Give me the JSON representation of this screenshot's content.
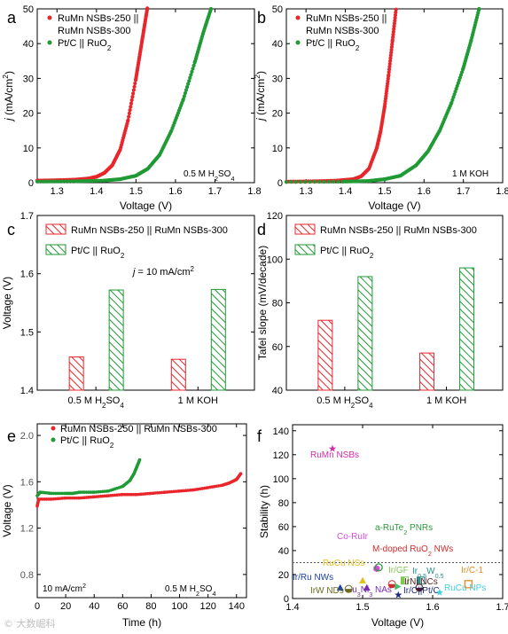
{
  "colors": {
    "red": "#e8262b",
    "green": "#1f9a34",
    "magenta": "#d62aa8"
  },
  "chart_data": [
    {
      "panel": "a",
      "type": "line",
      "xlabel": "Voltage (V)",
      "ylabel_parts": [
        "j",
        " (mA/cm",
        "2",
        ")"
      ],
      "xlim": [
        1.25,
        1.8
      ],
      "ylim": [
        0,
        50
      ],
      "xticks": [
        "1.3",
        "1.4",
        "1.5",
        "1.6",
        "1.7",
        "1.8"
      ],
      "yticks": [
        "0",
        "10",
        "20",
        "30",
        "40",
        "50"
      ],
      "annotation": [
        "0.5 M H",
        "2",
        "SO",
        "4"
      ],
      "legend": [
        [
          "RuMn NSBs-250 ||",
          "RuMn NSBs-300"
        ],
        [
          "Pt/C || RuO",
          "2"
        ]
      ],
      "series": [
        {
          "legend_index": 0,
          "color_key": "red",
          "x": [
            1.25,
            1.3,
            1.35,
            1.38,
            1.4,
            1.42,
            1.44,
            1.46,
            1.48,
            1.5,
            1.51,
            1.52,
            1.53
          ],
          "y": [
            0.6,
            0.7,
            0.9,
            1.2,
            1.7,
            2.8,
            5.0,
            9.5,
            18.0,
            30.0,
            37.0,
            44.0,
            51.0
          ]
        },
        {
          "legend_index": 1,
          "color_key": "green",
          "x": [
            1.25,
            1.35,
            1.42,
            1.46,
            1.5,
            1.53,
            1.56,
            1.59,
            1.62,
            1.65,
            1.67,
            1.69
          ],
          "y": [
            0.3,
            0.4,
            0.6,
            1.0,
            2.0,
            4.0,
            8.0,
            15.0,
            24.0,
            35.0,
            43.0,
            50.0
          ]
        }
      ]
    },
    {
      "panel": "b",
      "type": "line",
      "xlabel": "Voltage (V)",
      "ylabel_parts": [
        "j",
        " (mA/cm",
        "2",
        ")"
      ],
      "xlim": [
        1.25,
        1.8
      ],
      "ylim": [
        0,
        50
      ],
      "xticks": [
        "1.3",
        "1.4",
        "1.5",
        "1.6",
        "1.7",
        "1.8"
      ],
      "yticks": [
        "0",
        "10",
        "20",
        "30",
        "40",
        "50"
      ],
      "annotation": [
        "1 M KOH"
      ],
      "legend": [
        [
          "RuMn NSBs-250 ||",
          "RuMn NSBs-300"
        ],
        [
          "Pt/C || RuO",
          "2"
        ]
      ],
      "series": [
        {
          "legend_index": 0,
          "color_key": "red",
          "x": [
            1.25,
            1.32,
            1.38,
            1.42,
            1.44,
            1.46,
            1.48,
            1.49,
            1.5,
            1.51,
            1.52,
            1.53
          ],
          "y": [
            0.3,
            0.4,
            0.6,
            1.0,
            1.8,
            4.0,
            10.0,
            15.0,
            22.0,
            31.0,
            41.0,
            51.0
          ]
        },
        {
          "legend_index": 1,
          "color_key": "green",
          "x": [
            1.25,
            1.4,
            1.46,
            1.5,
            1.54,
            1.58,
            1.61,
            1.64,
            1.67,
            1.7,
            1.72,
            1.74
          ],
          "y": [
            0.2,
            0.3,
            0.5,
            1.0,
            2.0,
            5.0,
            9.0,
            15.0,
            23.0,
            33.0,
            41.0,
            50.0
          ]
        }
      ]
    },
    {
      "panel": "c",
      "type": "bar",
      "ylabel": "Voltage (V)",
      "ylim": [
        1.4,
        1.7
      ],
      "yticks": [
        "1.4",
        "1.5",
        "1.6",
        "1.7"
      ],
      "categories": [
        [
          "0.5 M H",
          "2",
          "SO",
          "4"
        ],
        [
          "1 M KOH"
        ]
      ],
      "annotation_parts": [
        "j",
        " = 10 mA/cm",
        "2"
      ],
      "series": [
        {
          "name": "RuMn NSBs-250 || RuMn NSBs-300",
          "color_key": "red",
          "values": [
            1.457,
            1.453
          ]
        },
        {
          "name_parts": [
            "Pt/C || RuO",
            "2"
          ],
          "color_key": "green",
          "values": [
            1.572,
            1.573
          ]
        }
      ]
    },
    {
      "panel": "d",
      "type": "bar",
      "ylabel": "Tafel slope (mV/decade)",
      "ylim": [
        40,
        120
      ],
      "yticks": [
        "40",
        "60",
        "80",
        "100",
        "120"
      ],
      "categories": [
        [
          "0.5 M H",
          "2",
          "SO",
          "4"
        ],
        [
          "1 M KOH"
        ]
      ],
      "series": [
        {
          "name": "RuMn NSBs-250 || RuMn NSBs-300",
          "color_key": "red",
          "values": [
            72,
            57
          ]
        },
        {
          "name_parts": [
            "Pt/C || RuO",
            "2"
          ],
          "color_key": "green",
          "values": [
            92,
            96
          ]
        }
      ]
    },
    {
      "panel": "e",
      "type": "line",
      "xlabel": "Time (h)",
      "ylabel": "Voltage (V)",
      "xlim": [
        0,
        147
      ],
      "ylim": [
        0.6,
        2.1
      ],
      "xticks": [
        "0",
        "20",
        "40",
        "60",
        "80",
        "100",
        "120",
        "140"
      ],
      "yticks": [
        "0.8",
        "1.2",
        "1.6",
        "2.0"
      ],
      "annotation_left": [
        "10 mA/cm",
        "2"
      ],
      "annotation_right": [
        "0.5 M H",
        "2",
        "SO",
        "4"
      ],
      "series": [
        {
          "name": "RuMn NSBs-250 || RuMn NSBs-300",
          "color_key": "red",
          "x": [
            0,
            1,
            10,
            20,
            30,
            40,
            50,
            60,
            70,
            80,
            90,
            100,
            110,
            120,
            130,
            135,
            140,
            143
          ],
          "y": [
            1.39,
            1.45,
            1.45,
            1.46,
            1.46,
            1.47,
            1.48,
            1.49,
            1.49,
            1.5,
            1.51,
            1.52,
            1.53,
            1.55,
            1.57,
            1.59,
            1.62,
            1.67
          ]
        },
        {
          "name_parts": [
            "Pt/C || RuO",
            "2"
          ],
          "color_key": "green",
          "x": [
            0,
            2,
            10,
            20,
            25,
            30,
            40,
            50,
            60,
            65,
            68,
            70,
            72
          ],
          "y": [
            1.48,
            1.51,
            1.5,
            1.5,
            1.5,
            1.51,
            1.51,
            1.52,
            1.56,
            1.61,
            1.67,
            1.73,
            1.79
          ]
        }
      ]
    },
    {
      "panel": "f",
      "type": "scatter",
      "xlabel": "Voltage (V)",
      "ylabel": "Stability (h)",
      "xlim": [
        1.4,
        1.7
      ],
      "ylim": [
        0,
        145
      ],
      "xticks": [
        "1.4",
        "1.5",
        "1.6",
        "1.7"
      ],
      "yticks": [
        "0",
        "20",
        "40",
        "60",
        "80",
        "100",
        "120",
        "140"
      ],
      "reference_line_y": 30,
      "points": [
        {
          "x": 1.457,
          "y": 125,
          "label": [
            "RuMn NSBs"
          ],
          "marker": "star",
          "color": "#d62aa8"
        },
        {
          "x": 1.52,
          "y": 25,
          "label": [
            "Co-RuIr"
          ],
          "marker": "hexagon",
          "color": "#d44bd9"
        },
        {
          "x": 1.523,
          "y": 26,
          "label": [
            "a-RuTe",
            "2",
            " PNRs"
          ],
          "marker": "circle",
          "color": "#2a9a3a"
        },
        {
          "x": 1.542,
          "y": 12,
          "label": [
            "M-doped RuO",
            "2",
            " NWs"
          ],
          "marker": "circle-half",
          "color": "#d02c2c"
        },
        {
          "x": 1.5,
          "y": 15,
          "label": [
            "RuCu NSs"
          ],
          "marker": "triangle-up",
          "color": "#e0c020"
        },
        {
          "x": 1.56,
          "y": 15,
          "label": [
            "Ir/GF"
          ],
          "marker": "square-half",
          "color": "#7ec850"
        },
        {
          "x": 1.583,
          "y": 15,
          "label": [
            "Ir",
            "0.5",
            "W",
            "0.5"
          ],
          "marker": "square-half",
          "color": "#2a8f8f"
        },
        {
          "x": 1.651,
          "y": 12,
          "label": [
            "Ir/C-1"
          ],
          "marker": "square",
          "color": "#f08a20"
        },
        {
          "x": 1.468,
          "y": 9,
          "label": [
            "Ir/Ru NWs"
          ],
          "marker": "triangle-up",
          "color": "#1a3fb0"
        },
        {
          "x": 1.506,
          "y": 9,
          "label": [
            "Ru",
            "3",
            "Ni",
            "3",
            " NAs"
          ],
          "marker": "triangle-up",
          "color": "#7a2ab0"
        },
        {
          "x": 1.48,
          "y": 8,
          "label": [
            "IrW NDs"
          ],
          "marker": "circle-half",
          "color": "#6a6a20"
        },
        {
          "x": 1.581,
          "y": 9,
          "label": [
            "IrNi NCs"
          ],
          "marker": "circle-half",
          "color": "#5a1a1a"
        },
        {
          "x": 1.55,
          "y": 10,
          "label": [],
          "marker": "triangle-right",
          "color": "#40c070"
        },
        {
          "x": 1.551,
          "y": 3,
          "label": [
            "Ir/C||Pt/C"
          ],
          "marker": "star",
          "color": "#1a2a80"
        },
        {
          "x": 1.61,
          "y": 5,
          "label": [
            "RuCu NPs"
          ],
          "marker": "star",
          "color": "#40d0e0"
        }
      ]
    }
  ],
  "panel_labels": [
    "a",
    "b",
    "c",
    "d",
    "e",
    "f"
  ],
  "watermark": "© 大数崛科"
}
